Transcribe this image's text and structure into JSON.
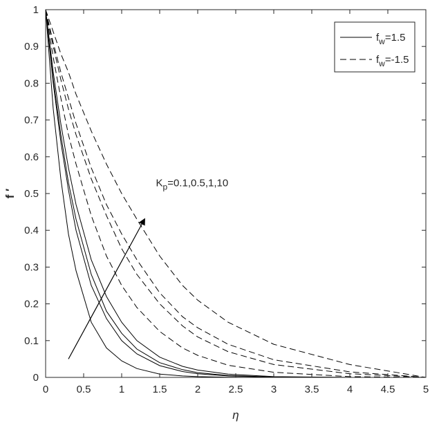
{
  "chart_data": {
    "type": "line",
    "title": "",
    "xlabel": "η",
    "ylabel": "f ′",
    "xlim": [
      0,
      5
    ],
    "ylim": [
      0,
      1
    ],
    "xticks": [
      0,
      0.5,
      1,
      1.5,
      2,
      2.5,
      3,
      3.5,
      4,
      4.5,
      5
    ],
    "xtick_labels": [
      "0",
      "0.5",
      "1",
      "1.5",
      "2",
      "2.5",
      "3",
      "3.5",
      "4",
      "4.5",
      "5"
    ],
    "yticks": [
      0,
      0.1,
      0.2,
      0.3,
      0.4,
      0.5,
      0.6,
      0.7,
      0.8,
      0.9,
      1
    ],
    "ytick_labels": [
      "0",
      "0.1",
      "0.2",
      "0.3",
      "0.4",
      "0.5",
      "0.6",
      "0.7",
      "0.8",
      "0.9",
      "1"
    ],
    "grid": false,
    "legend": {
      "position": "top-right",
      "entries": [
        {
          "base": "f",
          "sub": "w",
          "rest": "=1.5",
          "style": "solid"
        },
        {
          "base": "f",
          "sub": "w",
          "rest": "=-1.5",
          "style": "dashed"
        }
      ]
    },
    "annotation": {
      "base": "K",
      "sub": "p",
      "rest": "=0.1,0.5,1,10",
      "text_at": [
        1.45,
        0.52
      ],
      "arrow_from": [
        0.3,
        0.05
      ],
      "arrow_to": [
        1.3,
        0.43
      ]
    },
    "series": [
      {
        "group": "f_w=1.5",
        "Kp": "0.1",
        "style": "solid",
        "x": [
          0,
          0.1,
          0.2,
          0.3,
          0.4,
          0.6,
          0.8,
          1.0,
          1.2,
          1.5,
          1.8,
          2.0,
          2.4,
          3.0,
          4.0,
          5.0
        ],
        "y": [
          1,
          0.73,
          0.54,
          0.39,
          0.29,
          0.15,
          0.08,
          0.045,
          0.024,
          0.009,
          0.004,
          0.002,
          0.0005,
          0,
          0,
          0
        ]
      },
      {
        "group": "f_w=1.5",
        "Kp": "0.5",
        "style": "solid",
        "x": [
          0,
          0.1,
          0.2,
          0.3,
          0.4,
          0.6,
          0.8,
          1.0,
          1.2,
          1.5,
          1.8,
          2.0,
          2.4,
          3.0,
          4.0,
          5.0
        ],
        "y": [
          1,
          0.8,
          0.64,
          0.51,
          0.4,
          0.25,
          0.16,
          0.1,
          0.064,
          0.032,
          0.016,
          0.01,
          0.004,
          0.0005,
          0,
          0
        ]
      },
      {
        "group": "f_w=1.5",
        "Kp": "1",
        "style": "solid",
        "x": [
          0,
          0.1,
          0.2,
          0.3,
          0.4,
          0.6,
          0.8,
          1.0,
          1.2,
          1.5,
          1.8,
          2.0,
          2.4,
          3.0,
          4.0,
          5.0
        ],
        "y": [
          1,
          0.81,
          0.66,
          0.53,
          0.43,
          0.28,
          0.18,
          0.12,
          0.077,
          0.04,
          0.021,
          0.013,
          0.005,
          0.001,
          0,
          0
        ]
      },
      {
        "group": "f_w=1.5",
        "Kp": "10",
        "style": "solid",
        "x": [
          0,
          0.1,
          0.2,
          0.3,
          0.4,
          0.6,
          0.8,
          1.0,
          1.2,
          1.5,
          1.8,
          2.0,
          2.4,
          3.0,
          4.0,
          5.0
        ],
        "y": [
          1,
          0.83,
          0.69,
          0.57,
          0.47,
          0.32,
          0.22,
          0.15,
          0.1,
          0.055,
          0.03,
          0.02,
          0.009,
          0.002,
          0,
          0
        ]
      },
      {
        "group": "f_w=-1.5",
        "Kp": "0.1",
        "style": "dashed",
        "x": [
          0,
          0.1,
          0.2,
          0.3,
          0.4,
          0.6,
          0.8,
          1.0,
          1.2,
          1.5,
          1.8,
          2.0,
          2.4,
          3.0,
          4.0,
          5.0
        ],
        "y": [
          1,
          0.87,
          0.76,
          0.66,
          0.58,
          0.44,
          0.33,
          0.25,
          0.19,
          0.125,
          0.08,
          0.06,
          0.033,
          0.014,
          0.002,
          0
        ]
      },
      {
        "group": "f_w=-1.5",
        "Kp": "0.5",
        "style": "dashed",
        "x": [
          0,
          0.1,
          0.2,
          0.3,
          0.4,
          0.6,
          0.8,
          1.0,
          1.2,
          1.5,
          1.8,
          2.0,
          2.4,
          3.0,
          4.0,
          5.0
        ],
        "y": [
          1,
          0.9,
          0.81,
          0.73,
          0.66,
          0.54,
          0.44,
          0.35,
          0.28,
          0.2,
          0.14,
          0.11,
          0.07,
          0.035,
          0.01,
          0
        ]
      },
      {
        "group": "f_w=-1.5",
        "Kp": "1",
        "style": "dashed",
        "x": [
          0,
          0.1,
          0.2,
          0.3,
          0.4,
          0.6,
          0.8,
          1.0,
          1.2,
          1.5,
          1.8,
          2.0,
          2.4,
          3.0,
          4.0,
          5.0
        ],
        "y": [
          1,
          0.91,
          0.83,
          0.76,
          0.69,
          0.57,
          0.47,
          0.39,
          0.32,
          0.23,
          0.165,
          0.135,
          0.09,
          0.048,
          0.015,
          0
        ]
      },
      {
        "group": "f_w=-1.5",
        "Kp": "10",
        "style": "dashed",
        "x": [
          0,
          0.1,
          0.2,
          0.3,
          0.4,
          0.6,
          0.8,
          1.0,
          1.2,
          1.5,
          1.8,
          2.0,
          2.4,
          3.0,
          4.0,
          5.0
        ],
        "y": [
          1,
          0.94,
          0.88,
          0.83,
          0.77,
          0.67,
          0.58,
          0.5,
          0.43,
          0.33,
          0.25,
          0.21,
          0.15,
          0.09,
          0.035,
          0
        ]
      }
    ]
  }
}
